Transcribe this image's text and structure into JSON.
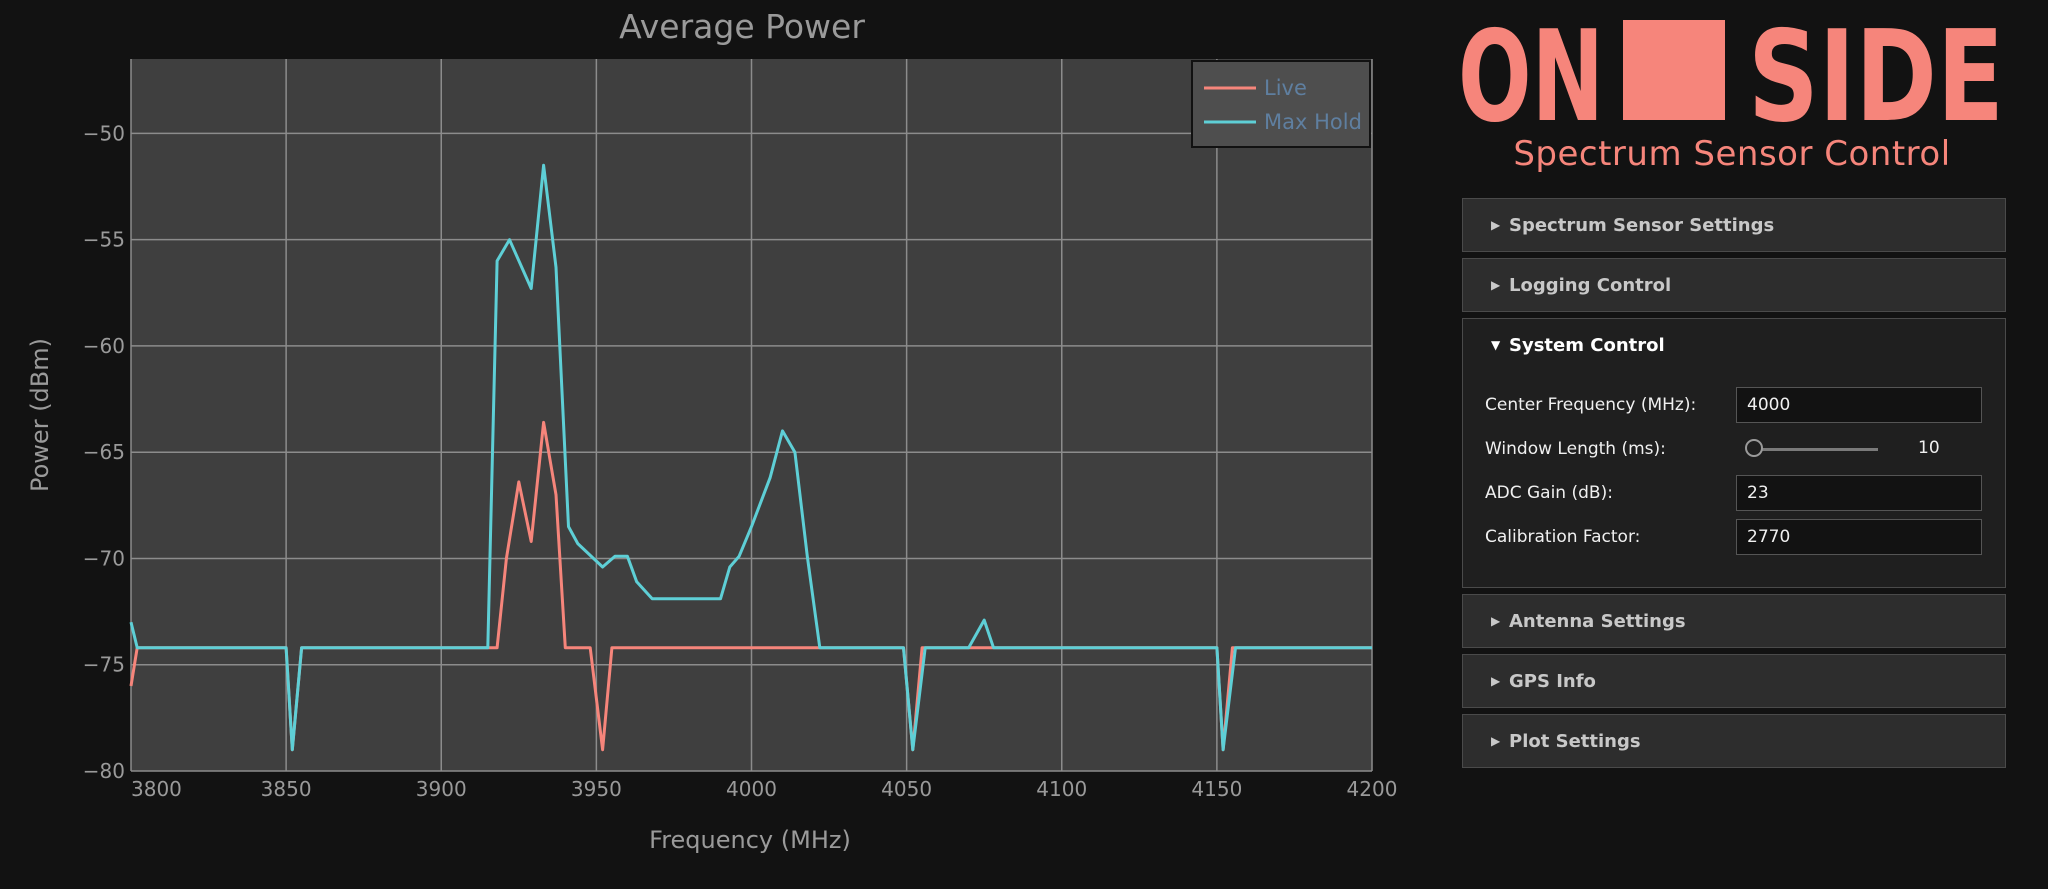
{
  "chart_data": {
    "type": "line",
    "title": "Average Power",
    "xlabel": "Frequency (MHz)",
    "ylabel": "Power (dBm)",
    "xlim": [
      3800,
      4200
    ],
    "ylim": [
      -80,
      -46.5
    ],
    "xticks": [
      3800,
      3850,
      3900,
      3950,
      4000,
      4050,
      4100,
      4150,
      4200
    ],
    "yticks": [
      -80,
      -75,
      -70,
      -65,
      -60,
      -55,
      -50
    ],
    "grid": true,
    "legend_position": "top-right",
    "series": [
      {
        "name": "Live",
        "color": "#f6857b",
        "x": [
          3800,
          3802,
          3850,
          3852,
          3855,
          3858,
          3915,
          3918,
          3921,
          3925,
          3929,
          3933,
          3937,
          3940,
          3948,
          3952,
          3955,
          3958,
          4020,
          4040,
          4049,
          4052,
          4055,
          4058,
          4070,
          4073,
          4075,
          4078,
          4150,
          4152,
          4155,
          4158,
          4200
        ],
        "y": [
          -76,
          -74.2,
          -74.2,
          -79,
          -74.2,
          -74.2,
          -74.2,
          -74.2,
          -70,
          -66.4,
          -69.2,
          -63.6,
          -67,
          -74.2,
          -74.2,
          -79,
          -74.2,
          -74.2,
          -74.2,
          -74.2,
          -74.2,
          -79,
          -74.2,
          -74.2,
          -74.2,
          -74.2,
          -74.2,
          -74.2,
          -74.2,
          -79,
          -74.2,
          -74.2,
          -74.2
        ]
      },
      {
        "name": "Max Hold",
        "color": "#5ecfd6",
        "x": [
          3800,
          3802,
          3850,
          3852,
          3855,
          3858,
          3915,
          3918,
          3922,
          3929,
          3933,
          3937,
          3941,
          3944,
          3952,
          3956,
          3960,
          3963,
          3968,
          3990,
          3993,
          3996,
          4000,
          4006,
          4010,
          4014,
          4018,
          4022,
          4049,
          4052,
          4056,
          4070,
          4075,
          4078,
          4150,
          4152,
          4156,
          4200
        ],
        "y": [
          -73,
          -74.2,
          -74.2,
          -79,
          -74.2,
          -74.2,
          -74.2,
          -56,
          -55,
          -57.3,
          -51.5,
          -56.3,
          -68.5,
          -69.3,
          -70.4,
          -69.9,
          -69.9,
          -71.1,
          -71.9,
          -71.9,
          -70.4,
          -69.9,
          -68.5,
          -66.2,
          -64,
          -65,
          -69.9,
          -74.2,
          -74.2,
          -79,
          -74.2,
          -74.2,
          -72.9,
          -74.2,
          -74.2,
          -79,
          -74.2,
          -74.2
        ]
      }
    ]
  },
  "brand": {
    "word_left": "ON",
    "word_right": "SIDE",
    "subtitle": "Spectrum Sensor Control",
    "color": "#f6857b"
  },
  "panels": [
    {
      "label": "Spectrum Sensor Settings"
    },
    {
      "label": "Logging Control"
    },
    {
      "label": "System Control"
    },
    {
      "label": "Antenna Settings"
    },
    {
      "label": "GPS Info"
    },
    {
      "label": "Plot Settings"
    }
  ],
  "system_control": {
    "center_frequency": {
      "label": "Center Frequency (MHz):",
      "value": "4000"
    },
    "window_length": {
      "label": "Window Length (ms):",
      "value": "10",
      "fraction": 0.0
    },
    "adc_gain": {
      "label": "ADC Gain (dB):",
      "value": "23"
    },
    "calibration_factor": {
      "label": "Calibration Factor:",
      "value": "2770"
    }
  },
  "colors": {
    "background": "#121212",
    "plot_background": "#3f3f3f",
    "grid": "#8c8c8c",
    "accent": "#f6857b"
  }
}
